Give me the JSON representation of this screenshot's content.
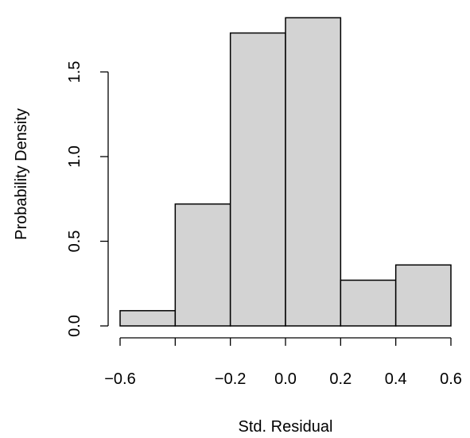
{
  "chart_data": {
    "type": "bar",
    "subtype": "histogram",
    "xlabel": "Std. Residual",
    "ylabel": "Probability Density",
    "bins": [
      {
        "x0": -0.6,
        "x1": -0.4,
        "density": 0.09
      },
      {
        "x0": -0.4,
        "x1": -0.2,
        "density": 0.72
      },
      {
        "x0": -0.2,
        "x1": 0.0,
        "density": 1.73
      },
      {
        "x0": 0.0,
        "x1": 0.2,
        "density": 1.82
      },
      {
        "x0": 0.2,
        "x1": 0.4,
        "density": 0.27
      },
      {
        "x0": 0.4,
        "x1": 0.6,
        "density": 0.36
      }
    ],
    "x_axis": {
      "ticks": [
        -0.6,
        -0.4,
        -0.2,
        0.0,
        0.2,
        0.4,
        0.6
      ],
      "tick_labels": [
        "−0.6",
        "",
        "−0.2",
        "0.0",
        "0.2",
        "0.4",
        "0.6"
      ],
      "range": [
        -0.6,
        0.6
      ]
    },
    "y_axis": {
      "ticks": [
        0.0,
        0.5,
        1.0,
        1.5
      ],
      "tick_labels": [
        "0.0",
        "0.5",
        "1.0",
        "1.5"
      ],
      "range": [
        0,
        1.82
      ]
    },
    "bar_fill": "#d3d3d3",
    "bar_stroke": "#000000",
    "grid": false,
    "legend": "none"
  }
}
